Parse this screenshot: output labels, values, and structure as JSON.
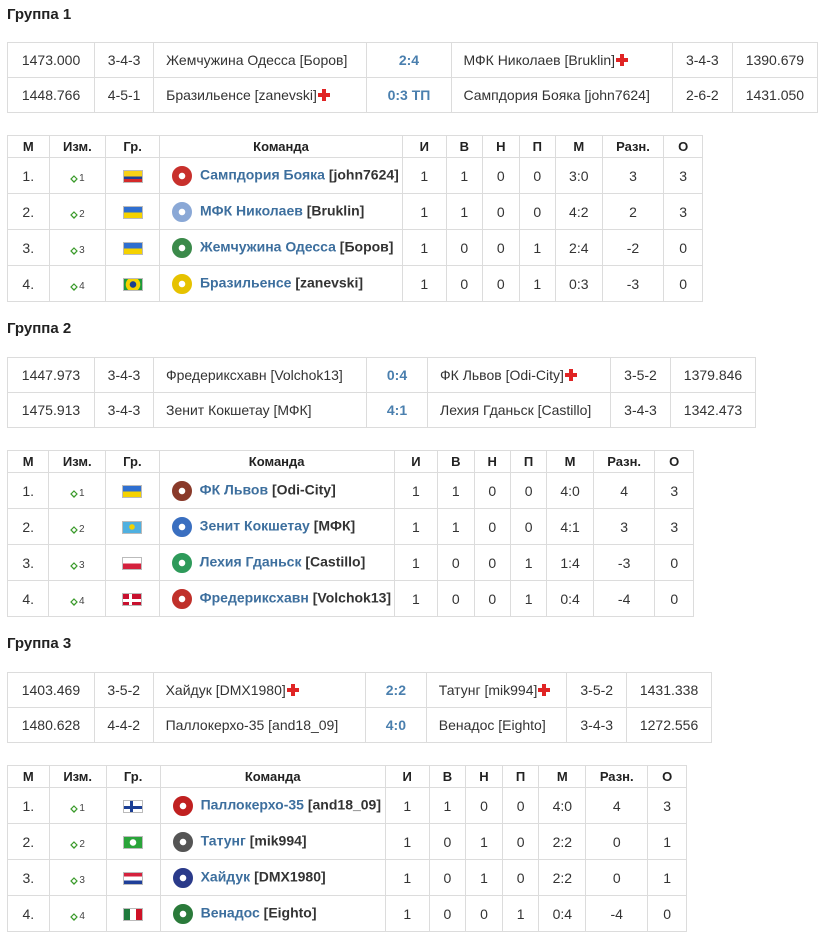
{
  "groups": [
    {
      "title": "Группа 1",
      "matches": [
        {
          "rating_home": "1473.000",
          "formation_home": "3-4-3",
          "home": "Жемчужина Одесса [Боров]",
          "home_cross": false,
          "score": "2:4",
          "away": "МФК Николаев [Bruklin]",
          "away_cross": true,
          "formation_away": "3-4-3",
          "rating_away": "1390.679"
        },
        {
          "rating_home": "1448.766",
          "formation_home": "4-5-1",
          "home": "Бразильенсе [zanevski]",
          "home_cross": true,
          "score": "0:3 ТП",
          "away": "Сампдория Бояка [john7624]",
          "away_cross": false,
          "formation_away": "2-6-2",
          "rating_away": "1431.050"
        }
      ],
      "standings": [
        {
          "pos": "1.",
          "chg": "1",
          "flag": "colombia",
          "logo": "#c8302c",
          "name": "Сампдория Бояка",
          "owner": "[john7624]",
          "p": "1",
          "w": "1",
          "d": "0",
          "l": "0",
          "goals": "3:0",
          "diff": "3",
          "pts": "3"
        },
        {
          "pos": "2.",
          "chg": "2",
          "flag": "ukraine",
          "logo": "#8aa8d6",
          "name": "МФК Николаев",
          "owner": "[Bruklin]",
          "p": "1",
          "w": "1",
          "d": "0",
          "l": "0",
          "goals": "4:2",
          "diff": "2",
          "pts": "3"
        },
        {
          "pos": "3.",
          "chg": "3",
          "flag": "ukraine",
          "logo": "#3b8a4a",
          "name": "Жемчужина Одесса",
          "owner": "[Боров]",
          "p": "1",
          "w": "0",
          "d": "0",
          "l": "1",
          "goals": "2:4",
          "diff": "-2",
          "pts": "0"
        },
        {
          "pos": "4.",
          "chg": "4",
          "flag": "brazil",
          "logo": "#e6c200",
          "name": "Бразильенсе",
          "owner": "[zanevski]",
          "p": "1",
          "w": "0",
          "d": "0",
          "l": "1",
          "goals": "0:3",
          "diff": "-3",
          "pts": "0"
        }
      ]
    },
    {
      "title": "Группа 2",
      "matches": [
        {
          "rating_home": "1447.973",
          "formation_home": "3-4-3",
          "home": "Фредериксхавн [Volchok13]",
          "home_cross": false,
          "score": "0:4",
          "away": "ФК Львов [Odi-City]",
          "away_cross": true,
          "formation_away": "3-5-2",
          "rating_away": "1379.846"
        },
        {
          "rating_home": "1475.913",
          "formation_home": "3-4-3",
          "home": "Зенит Кокшетау [МФК]",
          "home_cross": false,
          "score": "4:1",
          "away": "Лехия Гданьск [Castillo]",
          "away_cross": false,
          "formation_away": "3-4-3",
          "rating_away": "1342.473"
        }
      ],
      "standings": [
        {
          "pos": "1.",
          "chg": "1",
          "flag": "ukraine",
          "logo": "#8a3a2a",
          "name": "ФК Львов",
          "owner": "[Odi-City]",
          "p": "1",
          "w": "1",
          "d": "0",
          "l": "0",
          "goals": "4:0",
          "diff": "4",
          "pts": "3"
        },
        {
          "pos": "2.",
          "chg": "2",
          "flag": "kazakhstan",
          "logo": "#3a6fc0",
          "name": "Зенит Кокшетау",
          "owner": "[МФК]",
          "p": "1",
          "w": "1",
          "d": "0",
          "l": "0",
          "goals": "4:1",
          "diff": "3",
          "pts": "3"
        },
        {
          "pos": "3.",
          "chg": "3",
          "flag": "poland",
          "logo": "#2e9a5a",
          "name": "Лехия Гданьск",
          "owner": "[Castillo]",
          "p": "1",
          "w": "0",
          "d": "0",
          "l": "1",
          "goals": "1:4",
          "diff": "-3",
          "pts": "0"
        },
        {
          "pos": "4.",
          "chg": "4",
          "flag": "denmark",
          "logo": "#c0302a",
          "name": "Фредериксхавн",
          "owner": "[Volchok13]",
          "p": "1",
          "w": "0",
          "d": "0",
          "l": "1",
          "goals": "0:4",
          "diff": "-4",
          "pts": "0"
        }
      ]
    },
    {
      "title": "Группа 3",
      "matches": [
        {
          "rating_home": "1403.469",
          "formation_home": "3-5-2",
          "home": "Хайдук [DMX1980]",
          "home_cross": true,
          "score": "2:2",
          "away": "Татунг [mik994]",
          "away_cross": true,
          "formation_away": "3-5-2",
          "rating_away": "1431.338"
        },
        {
          "rating_home": "1480.628",
          "formation_home": "4-4-2",
          "home": "Паллокерхо-35 [and18_09]",
          "home_cross": false,
          "score": "4:0",
          "away": "Венадос [Eighto]",
          "away_cross": false,
          "formation_away": "3-4-3",
          "rating_away": "1272.556"
        }
      ],
      "standings": [
        {
          "pos": "1.",
          "chg": "1",
          "flag": "finland",
          "logo": "#c02020",
          "name": "Паллокерхо-35",
          "owner": "[and18_09]",
          "p": "1",
          "w": "1",
          "d": "0",
          "l": "0",
          "goals": "4:0",
          "diff": "4",
          "pts": "3"
        },
        {
          "pos": "2.",
          "chg": "2",
          "flag": "taiwan-green",
          "logo": "#555555",
          "name": "Татунг",
          "owner": "[mik994]",
          "p": "1",
          "w": "0",
          "d": "1",
          "l": "0",
          "goals": "2:2",
          "diff": "0",
          "pts": "1"
        },
        {
          "pos": "3.",
          "chg": "3",
          "flag": "croatia",
          "logo": "#2a3a8a",
          "name": "Хайдук",
          "owner": "[DMX1980]",
          "p": "1",
          "w": "0",
          "d": "1",
          "l": "0",
          "goals": "2:2",
          "diff": "0",
          "pts": "1"
        },
        {
          "pos": "4.",
          "chg": "4",
          "flag": "mexico",
          "logo": "#2a7a3a",
          "name": "Венадос",
          "owner": "[Eighto]",
          "p": "1",
          "w": "0",
          "d": "0",
          "l": "1",
          "goals": "0:4",
          "diff": "-4",
          "pts": "0"
        }
      ]
    }
  ],
  "headers": {
    "pos": "М",
    "chg": "Изм.",
    "grp": "Гр.",
    "team": "Команда",
    "p": "И",
    "w": "В",
    "d": "Н",
    "l": "П",
    "goals": "М",
    "diff": "Разн.",
    "pts": "О"
  },
  "icons": {
    "change": "green-diamond-arrow-icon",
    "cross": "red-cross-icon"
  }
}
